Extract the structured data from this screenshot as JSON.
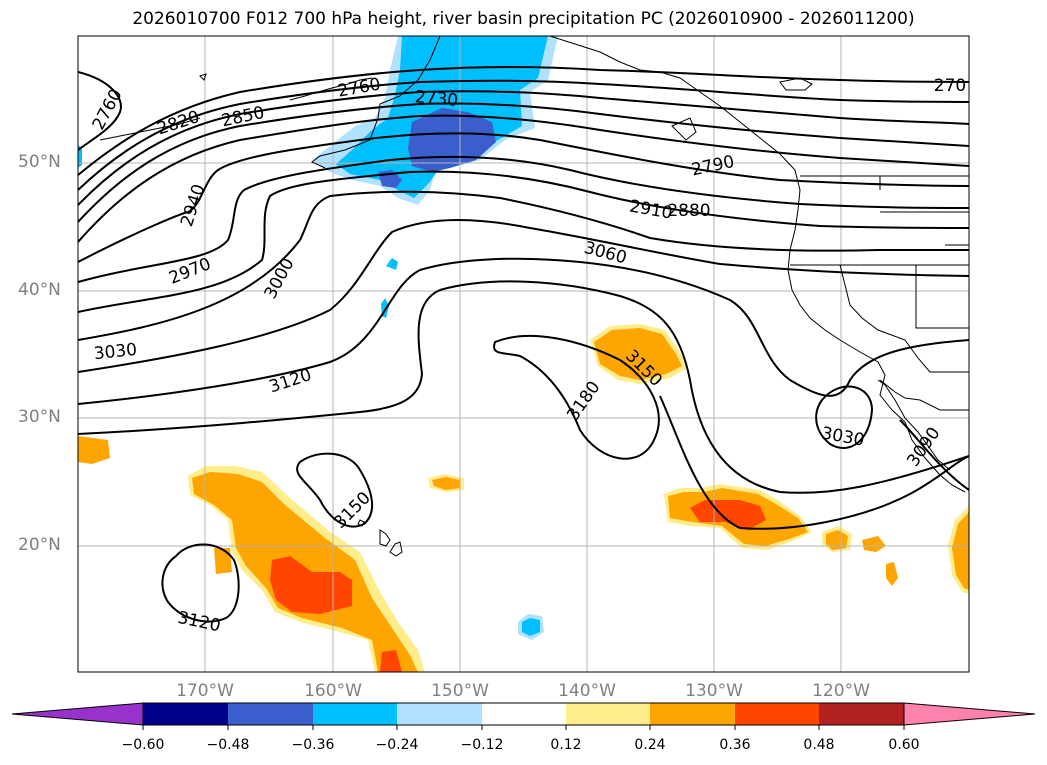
{
  "title": "2026010700 F012 700 hPa height, river basin precipitation PC (2026010900 - 2026011200)",
  "map": {
    "field": "700 hPa height",
    "shading": "river basin precipitation PC",
    "lat_labels": [
      "50°N",
      "40°N",
      "30°N",
      "20°N"
    ],
    "lon_labels": [
      "170°W",
      "160°W",
      "150°W",
      "140°W",
      "130°W",
      "120°W"
    ],
    "contour_labels": [
      "2760",
      "2820",
      "2850",
      "2760",
      "2730",
      "270",
      "2790",
      "2910",
      "2880",
      "2940",
      "2970",
      "3000",
      "3060",
      "3030",
      "3120",
      "3150",
      "3180",
      "3030",
      "3090",
      "3150",
      "3120"
    ]
  },
  "colorbar": {
    "ticks": [
      "−0.60",
      "−0.48",
      "−0.36",
      "−0.24",
      "−0.12",
      "0.12",
      "0.24",
      "0.36",
      "0.48",
      "0.60"
    ],
    "colors": [
      "#9932cc",
      "#00008b",
      "#3a5fcd",
      "#00bfff",
      "#b0e2ff",
      "#ffffff",
      "#ffec8b",
      "#ffa500",
      "#ff4500",
      "#b22222",
      "#ff82ab"
    ]
  }
}
